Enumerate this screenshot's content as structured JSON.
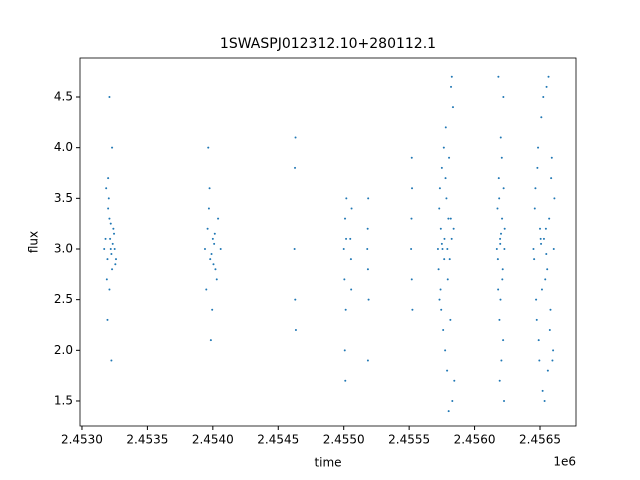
{
  "chart_data": {
    "type": "scatter",
    "title": "1SWASPJ012312.10+280112.1",
    "x_label": "time",
    "y_label": "flux",
    "x_offset_label": "1e6",
    "color": "#1f77b4",
    "x": [
      2453180,
      2453195,
      2453210,
      2453220,
      2453230,
      2453240,
      2453205,
      2453190,
      2453250,
      2453215,
      2453225,
      2453200,
      2453235,
      2453185,
      2453255,
      2453210,
      2453220,
      2453230,
      2453195,
      2453245,
      2453170,
      2453260,
      2453210,
      2453225,
      2453200,
      2453940,
      2453960,
      2453980,
      2454000,
      2454020,
      2454040,
      2454060,
      2453950,
      2453970,
      2453990,
      2454010,
      2454030,
      2453975,
      2453995,
      2454015,
      2453965,
      2453985,
      2454005,
      2454625,
      2454628,
      2454630,
      2454632,
      2454635,
      2455000,
      2455005,
      2455010,
      2455015,
      2455020,
      2455008,
      2455012,
      2455018,
      2455050,
      2455055,
      2455060,
      2455057,
      2455180,
      2455183,
      2455185,
      2455187,
      2455190,
      2455185,
      2455515,
      2455518,
      2455520,
      2455522,
      2455525,
      2455520,
      2455720,
      2455730,
      2455740,
      2455750,
      2455760,
      2455770,
      2455780,
      2455790,
      2455800,
      2455810,
      2455820,
      2455830,
      2455840,
      2455725,
      2455735,
      2455745,
      2455755,
      2455765,
      2455775,
      2455785,
      2455795,
      2455805,
      2455815,
      2455825,
      2455835,
      2455845,
      2455742,
      2455768,
      2455792,
      2455818,
      2455732,
      2455778,
      2455802,
      2455826,
      2455750,
      2456170,
      2456175,
      2456180,
      2456185,
      2456190,
      2456195,
      2456200,
      2456205,
      2456210,
      2456215,
      2456220,
      2456225,
      2456230,
      2456178,
      2456188,
      2456198,
      2456208,
      2456218,
      2456228,
      2456182,
      2456192,
      2456202,
      2456212,
      2456222,
      2456196,
      2456450,
      2456460,
      2456470,
      2456480,
      2456490,
      2456500,
      2456510,
      2456520,
      2456530,
      2456540,
      2456550,
      2456560,
      2456570,
      2456580,
      2456590,
      2456600,
      2456610,
      2456455,
      2456465,
      2456475,
      2456485,
      2456495,
      2456505,
      2456515,
      2456525,
      2456535,
      2456545,
      2456555,
      2456565,
      2456575,
      2456585,
      2456595,
      2456605,
      2456508,
      2456548
    ],
    "values": [
      3.1,
      2.9,
      3.3,
      3.0,
      2.8,
      3.2,
      3.5,
      2.7,
      3.0,
      3.1,
      2.95,
      3.4,
      3.05,
      3.6,
      2.85,
      2.6,
      3.25,
      4.0,
      2.3,
      3.15,
      3.0,
      2.9,
      4.5,
      1.9,
      3.7,
      3.0,
      3.2,
      2.9,
      3.1,
      2.8,
      3.3,
      3.0,
      2.6,
      3.4,
      2.95,
      3.05,
      2.7,
      3.6,
      2.4,
      3.15,
      4.0,
      2.1,
      2.85,
      3.0,
      3.8,
      2.5,
      4.1,
      2.2,
      3.0,
      2.7,
      3.3,
      2.4,
      3.5,
      2.0,
      1.7,
      3.1,
      3.1,
      2.9,
      3.4,
      2.6,
      3.0,
      3.2,
      2.8,
      3.5,
      2.5,
      1.9,
      3.0,
      3.3,
      2.7,
      3.6,
      2.4,
      3.9,
      3.0,
      3.4,
      2.6,
      3.8,
      2.2,
      3.1,
      4.2,
      1.8,
      3.3,
      2.9,
      4.6,
      1.5,
      3.2,
      2.8,
      3.6,
      2.4,
      3.0,
      4.0,
      2.0,
      3.5,
      2.7,
      3.9,
      2.3,
      3.1,
      4.4,
      1.7,
      3.2,
      2.9,
      3.0,
      3.3,
      2.5,
      3.7,
      1.4,
      4.7,
      3.05,
      3.0,
      3.4,
      2.6,
      3.7,
      2.3,
      3.1,
      4.1,
      1.9,
      3.3,
      2.8,
      4.5,
      1.5,
      3.2,
      2.9,
      3.5,
      2.5,
      3.9,
      2.1,
      3.0,
      4.7,
      1.7,
      3.15,
      2.7,
      3.6,
      3.05,
      3.0,
      3.4,
      2.5,
      3.8,
      2.1,
      3.2,
      4.3,
      1.6,
      3.1,
      2.7,
      4.6,
      1.8,
      3.3,
      2.4,
      3.9,
      2.0,
      3.5,
      2.9,
      3.6,
      2.3,
      4.0,
      1.9,
      3.1,
      2.6,
      4.5,
      1.5,
      3.2,
      2.8,
      4.7,
      2.2,
      3.7,
      1.9,
      3.0,
      3.05,
      2.95
    ],
    "xlim": [
      2452985,
      2456775
    ],
    "ylim": [
      1.253,
      4.885
    ],
    "xticks": [
      {
        "value": 2453000,
        "label": "2.4530"
      },
      {
        "value": 2453500,
        "label": "2.4535"
      },
      {
        "value": 2454000,
        "label": "2.4540"
      },
      {
        "value": 2454500,
        "label": "2.4545"
      },
      {
        "value": 2455000,
        "label": "2.4550"
      },
      {
        "value": 2455500,
        "label": "2.4555"
      },
      {
        "value": 2456000,
        "label": "2.4560"
      },
      {
        "value": 2456500,
        "label": "2.4565"
      }
    ],
    "yticks": [
      1.5,
      {
        "value": 2,
        "label": "2.0"
      },
      2.5,
      {
        "value": 3,
        "label": "3.0"
      },
      3.5,
      {
        "value": 4,
        "label": "4.0"
      },
      4.5
    ]
  }
}
